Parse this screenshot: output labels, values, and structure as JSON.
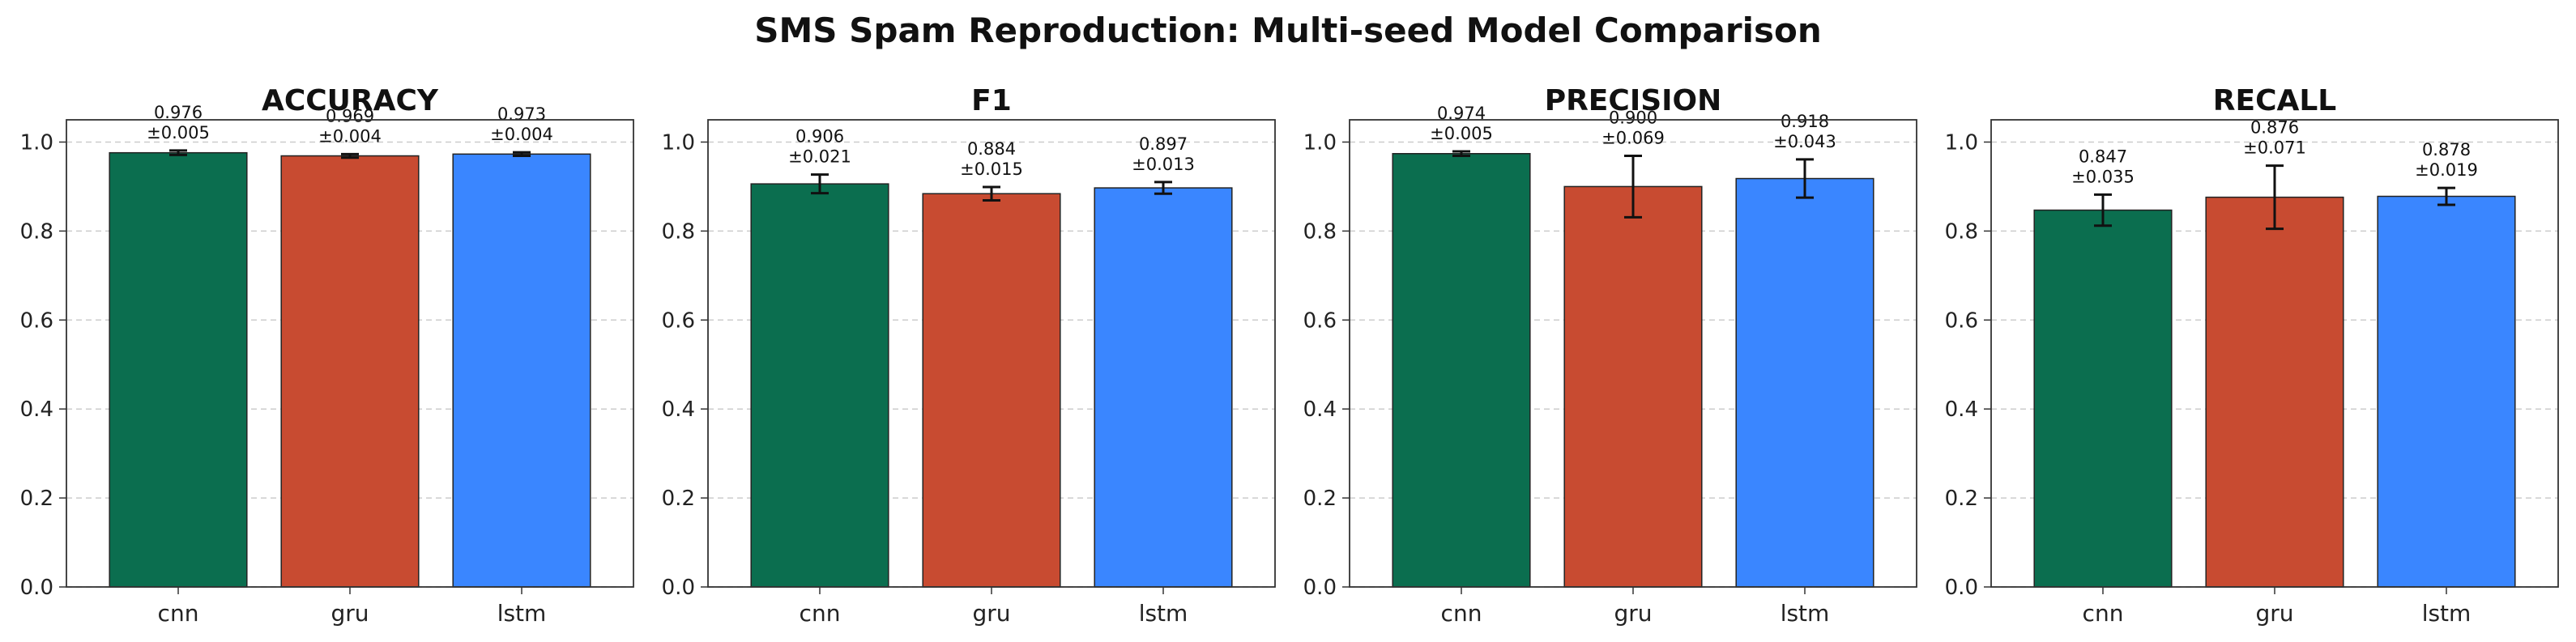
{
  "figure": {
    "title": "SMS Spam Reproduction: Multi-seed Model Comparison"
  },
  "colors": {
    "cnn": "#0b6e4f",
    "gru": "#c84b31",
    "lstm": "#3a86ff",
    "grid": "#cccccc",
    "axis": "#333333"
  },
  "chart_data": [
    {
      "type": "bar",
      "title": "ACCURACY",
      "categories": [
        "cnn",
        "gru",
        "lstm"
      ],
      "values": [
        0.976,
        0.969,
        0.973
      ],
      "errors": [
        0.005,
        0.004,
        0.004
      ],
      "value_labels": [
        "0.976",
        "0.969",
        "0.973"
      ],
      "error_labels": [
        "±0.005",
        "±0.004",
        "±0.004"
      ],
      "ylim": [
        0,
        1.05
      ],
      "yticks": [
        "0.0",
        "0.2",
        "0.4",
        "0.6",
        "0.8",
        "1.0"
      ],
      "grid": true
    },
    {
      "type": "bar",
      "title": "F1",
      "categories": [
        "cnn",
        "gru",
        "lstm"
      ],
      "values": [
        0.906,
        0.884,
        0.897
      ],
      "errors": [
        0.021,
        0.015,
        0.013
      ],
      "value_labels": [
        "0.906",
        "0.884",
        "0.897"
      ],
      "error_labels": [
        "±0.021",
        "±0.015",
        "±0.013"
      ],
      "ylim": [
        0,
        1.05
      ],
      "yticks": [
        "0.0",
        "0.2",
        "0.4",
        "0.6",
        "0.8",
        "1.0"
      ],
      "grid": true
    },
    {
      "type": "bar",
      "title": "PRECISION",
      "categories": [
        "cnn",
        "gru",
        "lstm"
      ],
      "values": [
        0.974,
        0.9,
        0.918
      ],
      "errors": [
        0.005,
        0.069,
        0.043
      ],
      "value_labels": [
        "0.974",
        "0.900",
        "0.918"
      ],
      "error_labels": [
        "±0.005",
        "±0.069",
        "±0.043"
      ],
      "ylim": [
        0,
        1.05
      ],
      "yticks": [
        "0.0",
        "0.2",
        "0.4",
        "0.6",
        "0.8",
        "1.0"
      ],
      "grid": true
    },
    {
      "type": "bar",
      "title": "RECALL",
      "categories": [
        "cnn",
        "gru",
        "lstm"
      ],
      "values": [
        0.847,
        0.876,
        0.878
      ],
      "errors": [
        0.035,
        0.071,
        0.019
      ],
      "value_labels": [
        "0.847",
        "0.876",
        "0.878"
      ],
      "error_labels": [
        "±0.035",
        "±0.071",
        "±0.019"
      ],
      "ylim": [
        0,
        1.05
      ],
      "yticks": [
        "0.0",
        "0.2",
        "0.4",
        "0.6",
        "0.8",
        "1.0"
      ],
      "grid": true
    }
  ]
}
